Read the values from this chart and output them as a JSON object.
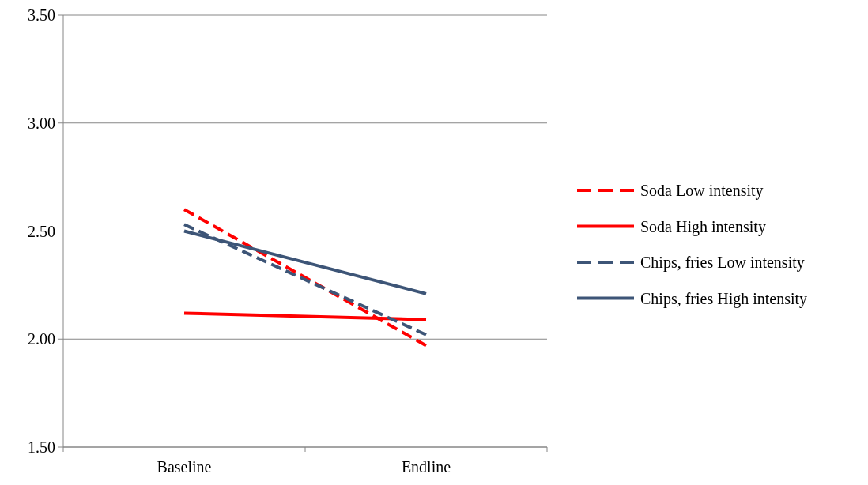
{
  "chart_data": {
    "type": "line",
    "categories": [
      "Baseline",
      "Endline"
    ],
    "ylim": [
      1.5,
      3.5
    ],
    "yticks": [
      {
        "value": 1.5,
        "label": "1.50"
      },
      {
        "value": 2,
        "label": "2.00"
      },
      {
        "value": 2.5,
        "label": "2.50"
      },
      {
        "value": 3,
        "label": "3.00"
      },
      {
        "value": 3.5,
        "label": "3.50"
      }
    ],
    "grid": "y",
    "legend": "right",
    "marker": "none",
    "series": [
      {
        "name": "Soda Low intensity",
        "color": "#ff0000",
        "line_style": "dashed",
        "values": [
          2.6,
          1.97
        ]
      },
      {
        "name": "Soda High intensity",
        "color": "#ff0000",
        "line_style": "solid",
        "values": [
          2.12,
          2.09
        ]
      },
      {
        "name": "Chips, fries Low intensity",
        "color": "#3d5577",
        "line_style": "dashed",
        "values": [
          2.53,
          2.02
        ]
      },
      {
        "name": "Chips, fries High intensity",
        "color": "#3d5577",
        "line_style": "solid",
        "values": [
          2.5,
          2.21
        ]
      }
    ]
  }
}
